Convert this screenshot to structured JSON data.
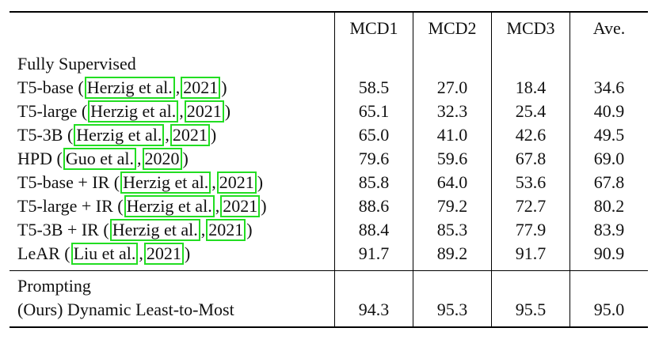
{
  "columns": [
    "MCD1",
    "MCD2",
    "MCD3",
    "Ave."
  ],
  "sections": [
    {
      "title": "Fully Supervised",
      "rows": [
        {
          "name": "T5-base",
          "cite_author": "Herzig et al.",
          "cite_year": "2021",
          "values": [
            "58.5",
            "27.0",
            "18.4",
            "34.6"
          ]
        },
        {
          "name": "T5-large",
          "cite_author": "Herzig et al.",
          "cite_year": "2021",
          "values": [
            "65.1",
            "32.3",
            "25.4",
            "40.9"
          ]
        },
        {
          "name": "T5-3B",
          "cite_author": "Herzig et al.",
          "cite_year": "2021",
          "values": [
            "65.0",
            "41.0",
            "42.6",
            "49.5"
          ]
        },
        {
          "name": "HPD",
          "cite_author": "Guo et al.",
          "cite_year": "2020",
          "values": [
            "79.6",
            "59.6",
            "67.8",
            "69.0"
          ]
        },
        {
          "name": "T5-base + IR",
          "cite_author": "Herzig et al.",
          "cite_year": "2021",
          "values": [
            "85.8",
            "64.0",
            "53.6",
            "67.8"
          ]
        },
        {
          "name": "T5-large + IR",
          "cite_author": "Herzig et al.",
          "cite_year": "2021",
          "values": [
            "88.6",
            "79.2",
            "72.7",
            "80.2"
          ]
        },
        {
          "name": "T5-3B + IR",
          "cite_author": "Herzig et al.",
          "cite_year": "2021",
          "values": [
            "88.4",
            "85.3",
            "77.9",
            "83.9"
          ]
        },
        {
          "name": "LeAR",
          "cite_author": "Liu et al.",
          "cite_year": "2021",
          "values": [
            "91.7",
            "89.2",
            "91.7",
            "90.9"
          ]
        }
      ]
    },
    {
      "title": "Prompting",
      "rows": [
        {
          "name": "(Ours) Dynamic Least-to-Most",
          "values": [
            "94.3",
            "95.3",
            "95.5",
            "95.0"
          ],
          "bold_values": true
        }
      ]
    }
  ],
  "highlight_color": "#22dd22"
}
